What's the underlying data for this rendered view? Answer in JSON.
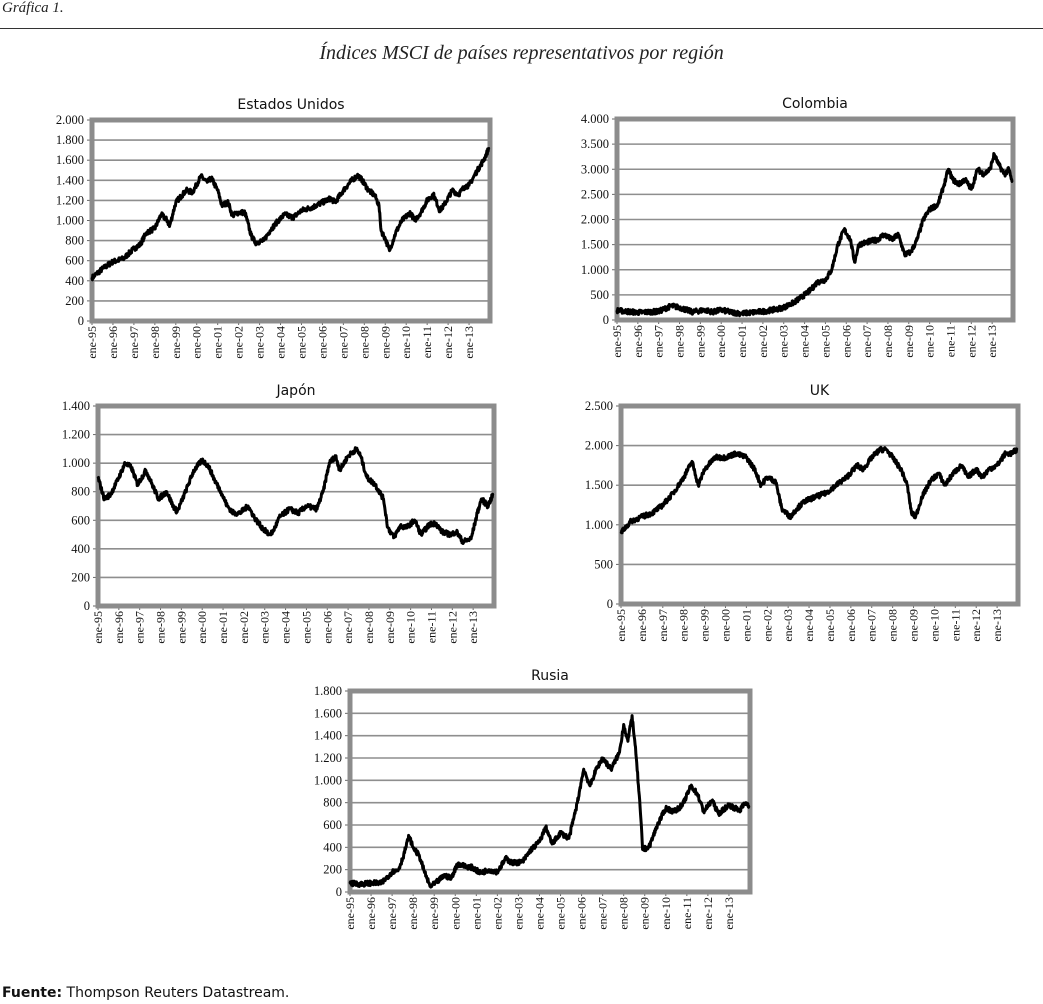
{
  "figure": {
    "label": "Gráfica 1.",
    "title": "Índices MSCI de países representativos por región",
    "source_label": "Fuente:",
    "source_text": "Thompson Reuters Datastream."
  },
  "chart_data": [
    {
      "type": "line",
      "title": "Estados Unidos",
      "ylim": [
        0,
        2000
      ],
      "ystep": 200,
      "x_tick_labels": [
        "ene-95",
        "ene-96",
        "ene-97",
        "ene-98",
        "ene-99",
        "ene-00",
        "ene-01",
        "ene-02",
        "ene-03",
        "ene-04",
        "ene-05",
        "ene-06",
        "ene-07",
        "ene-08",
        "ene-09",
        "ene-10",
        "ene-11",
        "ene-12",
        "ene-13"
      ],
      "xlim": [
        1995,
        2014
      ],
      "grid": true,
      "x": [
        1995,
        1995.5,
        1996,
        1996.5,
        1997,
        1997.3,
        1997.6,
        1998,
        1998.3,
        1998.6,
        1998.7,
        1999,
        1999.5,
        1999.8,
        2000.2,
        2000.5,
        2000.7,
        2001,
        2001.2,
        2001.5,
        2001.7,
        2002,
        2002.3,
        2002.6,
        2002.8,
        2003.2,
        2003.5,
        2003.9,
        2004.2,
        2004.6,
        2005,
        2005.5,
        2006,
        2006.4,
        2006.6,
        2007,
        2007.4,
        2007.7,
        2007.9,
        2008.2,
        2008.5,
        2008.7,
        2008.8,
        2009,
        2009.2,
        2009.5,
        2009.8,
        2010.2,
        2010.4,
        2010.7,
        2011,
        2011.3,
        2011.6,
        2011.8,
        2012.2,
        2012.5,
        2012.8,
        2013,
        2013.4,
        2013.7,
        2013.95
      ],
      "y": [
        430,
        520,
        590,
        620,
        720,
        760,
        880,
        920,
        1060,
        1000,
        940,
        1180,
        1300,
        1280,
        1440,
        1380,
        1420,
        1300,
        1150,
        1180,
        1050,
        1080,
        1080,
        850,
        780,
        800,
        900,
        1000,
        1060,
        1030,
        1100,
        1130,
        1180,
        1220,
        1180,
        1300,
        1400,
        1450,
        1400,
        1300,
        1250,
        1150,
        900,
        820,
        700,
        880,
        1000,
        1080,
        1000,
        1080,
        1200,
        1260,
        1100,
        1150,
        1300,
        1260,
        1340,
        1350,
        1500,
        1600,
        1720
      ]
    },
    {
      "type": "line",
      "title": "Colombia",
      "ylim": [
        0,
        4000
      ],
      "ystep": 500,
      "x_tick_labels": [
        "ene-95",
        "ene-96",
        "ene-97",
        "ene-98",
        "ene-99",
        "ene-00",
        "ene-01",
        "ene-02",
        "ene-03",
        "ene-04",
        "ene-05",
        "ene-06",
        "ene-07",
        "ene-08",
        "ene-09",
        "ene-10",
        "ene-11",
        "ene-12",
        "ene-13"
      ],
      "xlim": [
        1995,
        2014
      ],
      "grid": true,
      "x": [
        1995,
        1996,
        1997,
        1997.6,
        1998,
        1998.6,
        1999.2,
        1999.6,
        2000,
        2000.5,
        2001,
        2001.5,
        2002,
        2002.6,
        2003,
        2003.5,
        2004,
        2004.3,
        2004.6,
        2005,
        2005.3,
        2005.6,
        2005.9,
        2006.2,
        2006.4,
        2006.6,
        2007,
        2007.5,
        2007.8,
        2008.2,
        2008.5,
        2008.8,
        2009.1,
        2009.4,
        2009.7,
        2010,
        2010.4,
        2010.7,
        2010.9,
        2011.1,
        2011.4,
        2011.7,
        2012,
        2012.3,
        2012.6,
        2012.9,
        2013.1,
        2013.3,
        2013.6,
        2013.8,
        2013.95
      ],
      "y": [
        190,
        150,
        170,
        280,
        250,
        160,
        200,
        160,
        200,
        150,
        130,
        150,
        170,
        210,
        250,
        350,
        500,
        600,
        750,
        800,
        1000,
        1500,
        1800,
        1600,
        1150,
        1500,
        1550,
        1600,
        1700,
        1600,
        1700,
        1300,
        1350,
        1600,
        2000,
        2200,
        2300,
        2700,
        3000,
        2800,
        2700,
        2800,
        2600,
        3000,
        2900,
        3000,
        3300,
        3100,
        2900,
        3000,
        2750
      ]
    },
    {
      "type": "line",
      "title": "Japón",
      "ylim": [
        0,
        1400
      ],
      "ystep": 200,
      "x_tick_labels": [
        "ene-95",
        "ene-96",
        "ene-97",
        "ene-98",
        "ene-99",
        "ene-00",
        "ene-01",
        "ene-02",
        "ene-03",
        "ene-04",
        "ene-05",
        "ene-06",
        "ene-07",
        "ene-08",
        "ene-09",
        "ene-10",
        "ene-11",
        "ene-12",
        "ene-13"
      ],
      "xlim": [
        1995,
        2014
      ],
      "grid": true,
      "x": [
        1995,
        1995.3,
        1995.6,
        1996,
        1996.3,
        1996.6,
        1996.9,
        1997.3,
        1997.6,
        1997.9,
        1998.3,
        1998.6,
        1998.8,
        1999.2,
        1999.6,
        2000,
        2000.3,
        2000.6,
        2000.9,
        2001.2,
        2001.5,
        2001.8,
        2002.2,
        2002.5,
        2002.8,
        2003.2,
        2003.4,
        2003.7,
        2004.2,
        2004.6,
        2005,
        2005.5,
        2005.8,
        2006.1,
        2006.4,
        2006.6,
        2007,
        2007.4,
        2007.6,
        2007.9,
        2008.3,
        2008.7,
        2008.9,
        2009.2,
        2009.5,
        2009.8,
        2010.2,
        2010.5,
        2010.9,
        2011.2,
        2011.5,
        2011.9,
        2012.2,
        2012.5,
        2012.9,
        2013.2,
        2013.4,
        2013.7,
        2013.95
      ],
      "y": [
        900,
        750,
        780,
        900,
        1000,
        970,
        850,
        950,
        850,
        750,
        800,
        700,
        660,
        800,
        950,
        1020,
        980,
        880,
        800,
        700,
        650,
        650,
        700,
        620,
        560,
        500,
        520,
        620,
        680,
        650,
        700,
        680,
        800,
        1000,
        1050,
        950,
        1050,
        1100,
        1050,
        900,
        850,
        750,
        550,
        480,
        560,
        550,
        600,
        500,
        570,
        580,
        520,
        500,
        520,
        450,
        470,
        650,
        750,
        700,
        780
      ]
    },
    {
      "type": "line",
      "title": "UK",
      "ylim": [
        0,
        2500
      ],
      "ystep": 500,
      "x_tick_labels": [
        "ene-95",
        "ene-96",
        "ene-97",
        "ene-98",
        "ene-99",
        "ene-00",
        "ene-01",
        "ene-02",
        "ene-03",
        "ene-04",
        "ene-05",
        "ene-06",
        "ene-07",
        "ene-08",
        "ene-09",
        "ene-10",
        "ene-11",
        "ene-12",
        "ene-13"
      ],
      "xlim": [
        1995,
        2014
      ],
      "grid": true,
      "x": [
        1995,
        1995.5,
        1996,
        1996.5,
        1997,
        1997.5,
        1998,
        1998.4,
        1998.7,
        1999,
        1999.5,
        2000,
        2000.5,
        2001,
        2001.4,
        2001.7,
        2002,
        2002.4,
        2002.7,
        2003.1,
        2003.4,
        2003.8,
        2004.3,
        2004.8,
        2005.3,
        2005.8,
        2006.3,
        2006.6,
        2007,
        2007.4,
        2007.7,
        2008,
        2008.4,
        2008.7,
        2008.9,
        2009.1,
        2009.4,
        2009.8,
        2010.2,
        2010.5,
        2010.9,
        2011.3,
        2011.6,
        2012,
        2012.3,
        2012.6,
        2013,
        2013.4,
        2013.7,
        2013.95
      ],
      "y": [
        900,
        1050,
        1100,
        1150,
        1250,
        1400,
        1600,
        1800,
        1500,
        1700,
        1850,
        1850,
        1900,
        1850,
        1700,
        1500,
        1600,
        1550,
        1200,
        1100,
        1200,
        1300,
        1350,
        1400,
        1500,
        1600,
        1750,
        1700,
        1850,
        1950,
        1950,
        1850,
        1700,
        1500,
        1150,
        1100,
        1350,
        1550,
        1650,
        1500,
        1650,
        1750,
        1600,
        1700,
        1600,
        1700,
        1750,
        1900,
        1900,
        1950
      ]
    },
    {
      "type": "line",
      "title": "Rusia",
      "ylim": [
        0,
        1800
      ],
      "ystep": 200,
      "x_tick_labels": [
        "ene-95",
        "ene-96",
        "ene-97",
        "ene-98",
        "ene-99",
        "ene-00",
        "ene-01",
        "ene-02",
        "ene-03",
        "ene-04",
        "ene-05",
        "ene-06",
        "ene-07",
        "ene-08",
        "ene-09",
        "ene-10",
        "ene-11",
        "ene-12",
        "ene-13"
      ],
      "xlim": [
        1995,
        2014
      ],
      "grid": true,
      "x": [
        1995,
        1995.5,
        1996,
        1996.5,
        1997,
        1997.3,
        1997.5,
        1997.8,
        1998,
        1998.3,
        1998.5,
        1998.8,
        1999,
        1999.5,
        1999.8,
        2000.1,
        2000.5,
        2000.8,
        2001.2,
        2001.6,
        2002,
        2002.4,
        2002.7,
        2003.2,
        2003.6,
        2004,
        2004.3,
        2004.6,
        2005,
        2005.4,
        2005.8,
        2006.1,
        2006.4,
        2006.7,
        2007,
        2007.4,
        2007.8,
        2008,
        2008.2,
        2008.4,
        2008.6,
        2008.8,
        2008.9,
        2009.2,
        2009.6,
        2010,
        2010.4,
        2010.8,
        2011.2,
        2011.5,
        2011.8,
        2012.2,
        2012.5,
        2013,
        2013.5,
        2013.8,
        2013.95
      ],
      "y": [
        80,
        70,
        80,
        80,
        180,
        200,
        300,
        500,
        400,
        320,
        200,
        50,
        70,
        150,
        120,
        250,
        230,
        220,
        170,
        200,
        180,
        300,
        260,
        270,
        380,
        450,
        580,
        430,
        530,
        480,
        800,
        1100,
        950,
        1100,
        1200,
        1100,
        1250,
        1500,
        1350,
        1580,
        1200,
        700,
        380,
        400,
        600,
        750,
        720,
        780,
        950,
        880,
        720,
        820,
        700,
        780,
        730,
        800,
        770
      ]
    }
  ]
}
